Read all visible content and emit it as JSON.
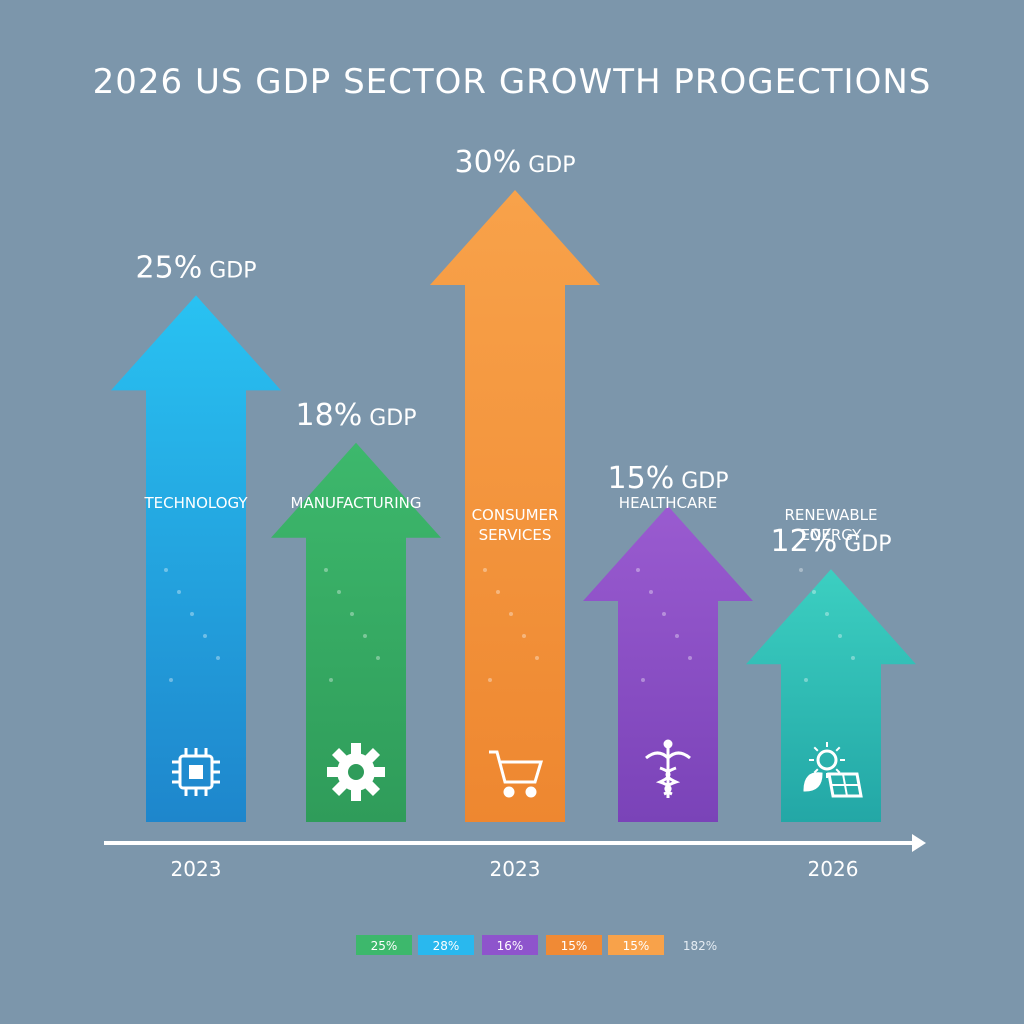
{
  "chart_data": {
    "type": "bar",
    "title": "2026 US GDP SECTOR GROWTH PROGECTIONS",
    "unit_suffix": " GDP",
    "categories": [
      "TECHNOLOGY",
      "MANUFACTURING",
      "CONSUMER SERVICES",
      "HEALTHCARE",
      "RENEWABLE ENERGY"
    ],
    "values": [
      25,
      18,
      30,
      15,
      12
    ],
    "value_labels": [
      "25%",
      "18%",
      "30%",
      "15%",
      "12%"
    ],
    "icons": [
      "microchip-icon",
      "gear-icon",
      "shopping-cart-icon",
      "caduceus-icon",
      "solar-panel-icon"
    ],
    "colors": [
      {
        "top": "#29c2f2",
        "bottom": "#1e86cc"
      },
      {
        "top": "#3db86c",
        "bottom": "#2f9c5a"
      },
      {
        "top": "#f8a24a",
        "bottom": "#ee8730"
      },
      {
        "top": "#9a5bd0",
        "bottom": "#7a43b8"
      },
      {
        "top": "#3ccfc1",
        "bottom": "#23a7a6"
      }
    ],
    "x_axis_labels": [
      "2023",
      "2023",
      "2026"
    ],
    "legend": [
      {
        "label": "25%",
        "color": "#3db86c"
      },
      {
        "label": "28%",
        "color": "#29b8ee"
      },
      {
        "label": "16%",
        "color": "#8e54cc"
      },
      {
        "label": "15%",
        "color": "#f08a35"
      },
      {
        "label": "15%",
        "color": "#f8a24a"
      },
      {
        "label": "182%",
        "color": null
      }
    ]
  }
}
